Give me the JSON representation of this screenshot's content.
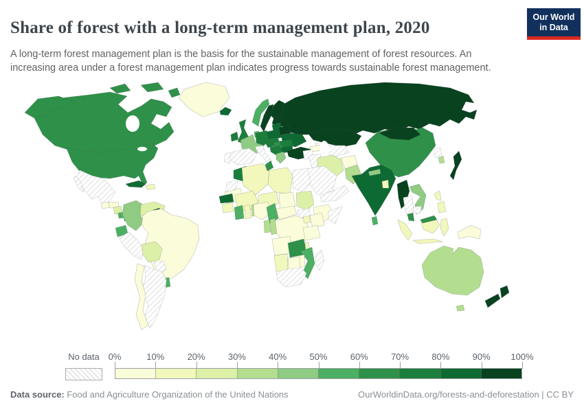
{
  "header": {
    "title": "Share of forest with a long-term management plan, 2020",
    "subtitle": "A long-term forest management plan is the basis for the sustainable management of forest resources. An increasing area under a forest management plan indicates progress towards sustainable forest management.",
    "logo_line1": "Our World",
    "logo_line2": "in Data",
    "logo_bg": "#12305c",
    "logo_accent": "#dc2a20"
  },
  "legend": {
    "no_data_label": "No data",
    "ticks": [
      "0%",
      "10%",
      "20%",
      "30%",
      "40%",
      "50%",
      "60%",
      "70%",
      "80%",
      "90%",
      "100%"
    ],
    "bin_colors": [
      "#fbfcd9",
      "#f2f8bb",
      "#ddf0a7",
      "#b3de90",
      "#8fcb82",
      "#4caf63",
      "#2f9149",
      "#1c7e3c",
      "#0e6a33",
      "#09421f"
    ]
  },
  "footer": {
    "source_label": "Data source:",
    "source_value": " Food and Agriculture Organization of the United Nations",
    "credit": "OurWorldinData.org/forests-and-deforestation | CC BY"
  },
  "chart_data": {
    "type": "heatmap",
    "subtype": "world-choropleth",
    "title": "Share of forest with a long-term management plan, 2020",
    "unit": "% of forest area",
    "year": 2020,
    "color_scale": {
      "scheme": "YlGn",
      "bin_edges": [
        0,
        10,
        20,
        30,
        40,
        50,
        60,
        70,
        80,
        90,
        100
      ],
      "no_data_style": "hatched"
    },
    "countries": {
      "Canada": 65,
      "United States": 65,
      "Greenland": 5,
      "Mexico": null,
      "Guatemala": 5,
      "Honduras": 5,
      "Nicaragua": 25,
      "Costa Rica": 55,
      "Panama": 55,
      "Cuba": 85,
      "Dominican Republic": 15,
      "Colombia": 45,
      "Venezuela": 25,
      "Guyana": 95,
      "Suriname": 35,
      "Ecuador": 55,
      "Peru": null,
      "Brazil": 5,
      "Bolivia": 25,
      "Paraguay": null,
      "Uruguay": 55,
      "Argentina": null,
      "Chile": 5,
      "Iceland": 85,
      "United Kingdom": 75,
      "Ireland": 75,
      "Norway": 55,
      "Sweden": 95,
      "Finland": 95,
      "Denmark": 55,
      "France": 45,
      "Spain": null,
      "Portugal": null,
      "Germany": 75,
      "Poland": 85,
      "Czechia & Austria": 75,
      "Hungary": 65,
      "Italy": null,
      "Balkans": 75,
      "Romania": 75,
      "Bulgaria": 85,
      "Greece": 45,
      "Baltic states": 85,
      "Belarus": 95,
      "Ukraine": 85,
      "Turkey": 95,
      "Russia": 95,
      "Kazakhstan": 95,
      "Mongolia": 95,
      "China": 65,
      "India": 85,
      "Pakistan": 35,
      "Afghanistan": 5,
      "Iran": 25,
      "Iraq": null,
      "Syria": null,
      "Saudi Arabia": null,
      "Yemen": null,
      "Caucasus": 5,
      "Central Asia": null,
      "Nepal": 45,
      "Bangladesh": 15,
      "Sri Lanka": 55,
      "Myanmar": 95,
      "Thailand": null,
      "Laos & Vietnam": 45,
      "Cambodia": null,
      "Malaysia": 65,
      "Indonesia": 15,
      "Philippines": 15,
      "Papua New Guinea": 5,
      "Japan": 95,
      "South Korea": 35,
      "North Korea": null,
      "Morocco": 75,
      "Western Sahara": null,
      "Mauritania": 5,
      "Algeria": 15,
      "Tunisia": 65,
      "Libya": 15,
      "Egypt": null,
      "Mali": 15,
      "Niger": 15,
      "Chad": 5,
      "Sudan": 25,
      "South Sudan": null,
      "Ethiopia": 5,
      "Somalia": null,
      "Senegal": 85,
      "Guinea": 15,
      "Cote d'Ivoire": 55,
      "Ghana": 15,
      "Togo": 35,
      "Nigeria": 5,
      "Cameroon": 55,
      "Central African Republic": 5,
      "Democratic Republic of Congo": 5,
      "Gabon": 35,
      "Congo": 35,
      "Uganda": 15,
      "Kenya": 5,
      "Tanzania": 5,
      "Angola": 5,
      "Zambia": 65,
      "Malawi": 15,
      "Mozambique": 55,
      "Zimbabwe": 5,
      "Namibia": 15,
      "Botswana": 5,
      "South Africa": null,
      "Madagascar": null,
      "Australia": 35,
      "New Zealand": 95
    }
  }
}
